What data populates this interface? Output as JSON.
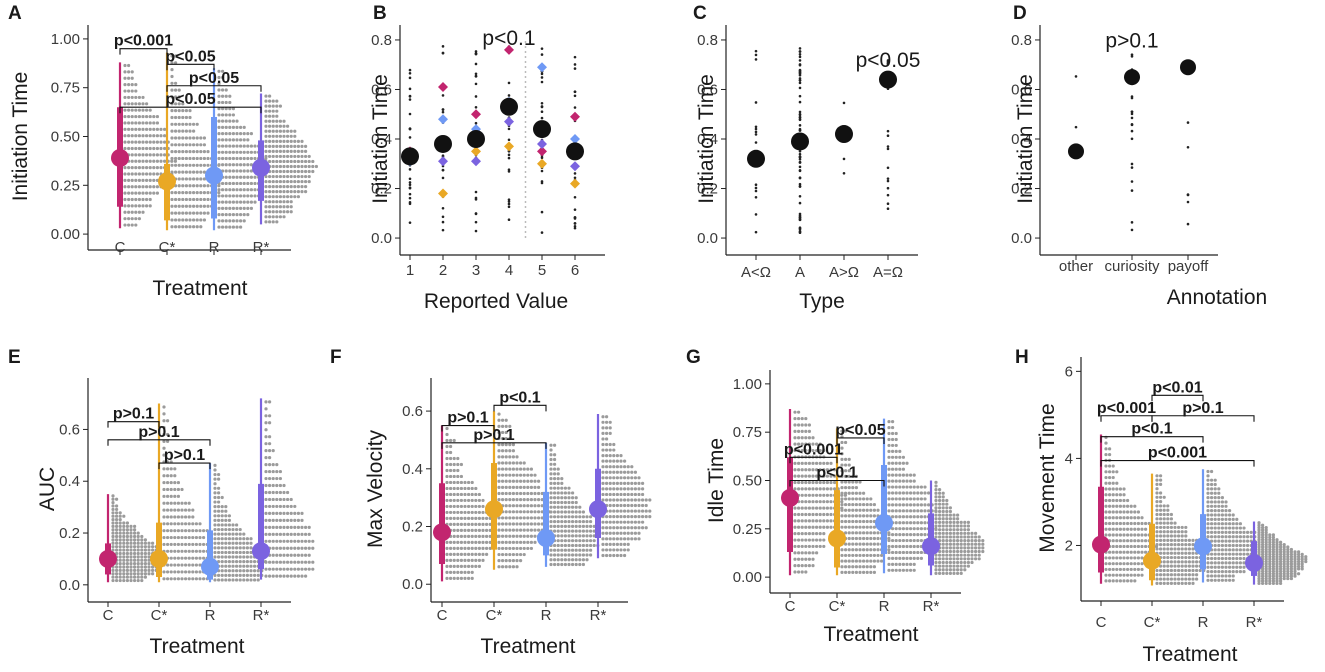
{
  "colors": {
    "C": "#c2256f",
    "C*": "#e9a825",
    "R": "#6f99f5",
    "R*": "#7b63e0",
    "dots": "#9b9b9b",
    "black": "#111111"
  },
  "chart_data": [
    {
      "panel": "A",
      "type": "scatter",
      "title": "",
      "xlabel": "Treatment",
      "ylabel": "Initiation Time",
      "categories": [
        "C",
        "C*",
        "R",
        "R*"
      ],
      "yticks": [
        0.0,
        0.25,
        0.5,
        0.75,
        1.0
      ],
      "ytick_labels": [
        "0.00",
        "0.25",
        "0.50",
        "0.75",
        "1.00"
      ],
      "ylim": [
        -0.02,
        1.02
      ],
      "series": [
        {
          "name": "C",
          "mean": 0.39,
          "q_low": 0.14,
          "q_high": 0.65,
          "min": 0.03,
          "max": 0.88
        },
        {
          "name": "C*",
          "mean": 0.27,
          "q_low": 0.07,
          "q_high": 0.36,
          "min": 0.02,
          "max": 0.93
        },
        {
          "name": "R",
          "mean": 0.3,
          "q_low": 0.08,
          "q_high": 0.6,
          "min": 0.02,
          "max": 0.85
        },
        {
          "name": "R*",
          "mean": 0.34,
          "q_low": 0.17,
          "q_high": 0.48,
          "min": 0.05,
          "max": 0.72
        }
      ],
      "annotations": [
        {
          "text": "p<0.001",
          "from": "C",
          "to": "C*",
          "y": 0.95
        },
        {
          "text": "p<0.05",
          "from": "C*",
          "to": "R",
          "y": 0.87
        },
        {
          "text": "p<0.05",
          "from": "C*",
          "to": "R*",
          "y": 0.76
        },
        {
          "text": "p<0.05",
          "from": "C",
          "to": "R*",
          "y": 0.65
        }
      ]
    },
    {
      "panel": "B",
      "type": "scatter",
      "title": "",
      "xlabel": "Reported Value",
      "ylabel": "Initiation Time",
      "categories": [
        "1",
        "2",
        "3",
        "4",
        "5",
        "6"
      ],
      "yticks": [
        0.0,
        0.2,
        0.4,
        0.6,
        0.8
      ],
      "ytick_labels": [
        "0.0",
        "0.2",
        "0.4",
        "0.6",
        "0.8"
      ],
      "ylim": [
        -0.02,
        0.82
      ],
      "means": [
        0.33,
        0.38,
        0.4,
        0.53,
        0.44,
        0.35
      ],
      "diamonds": {
        "C": [
          0.35,
          0.61,
          0.5,
          0.76,
          0.35,
          0.49
        ],
        "C*": [
          0.34,
          0.18,
          0.35,
          0.37,
          0.3,
          0.22
        ],
        "R": [
          0.31,
          0.48,
          0.44,
          0.55,
          0.69,
          0.4
        ],
        "R*": [
          0.32,
          0.31,
          0.31,
          0.47,
          0.38,
          0.29
        ]
      },
      "annotations": [
        {
          "text": "p<0.1",
          "x": "4",
          "y": 0.78
        }
      ]
    },
    {
      "panel": "C",
      "type": "scatter",
      "title": "",
      "xlabel": "Type",
      "ylabel": "Initiation Time",
      "categories": [
        "A<Ω",
        "A",
        "A>Ω",
        "A=Ω"
      ],
      "yticks": [
        0.0,
        0.2,
        0.4,
        0.6,
        0.8
      ],
      "ytick_labels": [
        "0.0",
        "0.2",
        "0.4",
        "0.6",
        "0.8"
      ],
      "ylim": [
        -0.02,
        0.82
      ],
      "means": [
        0.32,
        0.39,
        0.42,
        0.64
      ],
      "annotations": [
        {
          "text": "p<0.05",
          "x": "A=Ω",
          "y": 0.69
        }
      ]
    },
    {
      "panel": "D",
      "type": "scatter",
      "title": "",
      "xlabel": "Annotation",
      "ylabel": "Initiation Time",
      "categories": [
        "other",
        "curiosity",
        "payoff"
      ],
      "yticks": [
        0.0,
        0.2,
        0.4,
        0.6,
        0.8
      ],
      "ytick_labels": [
        "0.0",
        "0.2",
        "0.4",
        "0.6",
        "0.8"
      ],
      "ylim": [
        -0.02,
        0.82
      ],
      "means": [
        0.35,
        0.65,
        0.69
      ],
      "annotations": [
        {
          "text": "p>0.1",
          "x": "curiosity",
          "y": 0.77
        }
      ]
    },
    {
      "panel": "E",
      "type": "scatter",
      "title": "",
      "xlabel": "Treatment",
      "ylabel": "AUC",
      "categories": [
        "C",
        "C*",
        "R",
        "R*"
      ],
      "yticks": [
        0.0,
        0.2,
        0.4,
        0.6
      ],
      "ytick_labels": [
        "0.0",
        "0.2",
        "0.4",
        "0.6"
      ],
      "ylim": [
        -0.02,
        0.76
      ],
      "series": [
        {
          "name": "C",
          "mean": 0.1,
          "q_low": 0.04,
          "q_high": 0.16,
          "min": 0.01,
          "max": 0.35
        },
        {
          "name": "C*",
          "mean": 0.1,
          "q_low": 0.03,
          "q_high": 0.24,
          "min": 0.01,
          "max": 0.7
        },
        {
          "name": "R",
          "mean": 0.07,
          "q_low": 0.02,
          "q_high": 0.21,
          "min": 0.01,
          "max": 0.47
        },
        {
          "name": "R*",
          "mean": 0.13,
          "q_low": 0.06,
          "q_high": 0.39,
          "min": 0.02,
          "max": 0.72
        }
      ],
      "annotations": [
        {
          "text": "p>0.1",
          "from": "C",
          "to": "C*",
          "y": 0.63
        },
        {
          "text": "p>0.1",
          "from": "C",
          "to": "R",
          "y": 0.56
        },
        {
          "text": "p>0.1",
          "from": "C*",
          "to": "R",
          "y": 0.47
        }
      ]
    },
    {
      "panel": "F",
      "type": "scatter",
      "title": "",
      "xlabel": "Treatment",
      "ylabel": "Max Velocity",
      "categories": [
        "C",
        "C*",
        "R",
        "R*"
      ],
      "yticks": [
        0.0,
        0.2,
        0.4,
        0.6
      ],
      "ytick_labels": [
        "0.0",
        "0.2",
        "0.4",
        "0.6"
      ],
      "ylim": [
        -0.02,
        0.68
      ],
      "series": [
        {
          "name": "C",
          "mean": 0.18,
          "q_low": 0.07,
          "q_high": 0.35,
          "min": 0.01,
          "max": 0.55
        },
        {
          "name": "C*",
          "mean": 0.26,
          "q_low": 0.12,
          "q_high": 0.42,
          "min": 0.05,
          "max": 0.6
        },
        {
          "name": "R",
          "mean": 0.16,
          "q_low": 0.1,
          "q_high": 0.32,
          "min": 0.06,
          "max": 0.49
        },
        {
          "name": "R*",
          "mean": 0.26,
          "q_low": 0.16,
          "q_high": 0.4,
          "min": 0.09,
          "max": 0.59
        }
      ],
      "annotations": [
        {
          "text": "p<0.1",
          "from": "C*",
          "to": "R",
          "y": 0.62
        },
        {
          "text": "p>0.1",
          "from": "C",
          "to": "C*",
          "y": 0.55
        },
        {
          "text": "p>0.1",
          "from": "C",
          "to": "R",
          "y": 0.49
        }
      ]
    },
    {
      "panel": "G",
      "type": "scatter",
      "title": "",
      "xlabel": "Treatment",
      "ylabel": "Idle Time",
      "categories": [
        "C",
        "C*",
        "R",
        "R*"
      ],
      "yticks": [
        0.0,
        0.25,
        0.5,
        0.75,
        1.0
      ],
      "ytick_labels": [
        "0.00",
        "0.25",
        "0.50",
        "0.75",
        "1.00"
      ],
      "ylim": [
        -0.02,
        1.02
      ],
      "series": [
        {
          "name": "C",
          "mean": 0.41,
          "q_low": 0.13,
          "q_high": 0.62,
          "min": 0.01,
          "max": 0.87
        },
        {
          "name": "C*",
          "mean": 0.2,
          "q_low": 0.05,
          "q_high": 0.45,
          "min": 0.01,
          "max": 0.77
        },
        {
          "name": "R",
          "mean": 0.28,
          "q_low": 0.12,
          "q_high": 0.58,
          "min": 0.02,
          "max": 0.82
        },
        {
          "name": "R*",
          "mean": 0.16,
          "q_low": 0.06,
          "q_high": 0.33,
          "min": 0.01,
          "max": 0.5
        }
      ],
      "annotations": [
        {
          "text": "p<0.05",
          "from": "C*",
          "to": "R",
          "y": 0.72
        },
        {
          "text": "p<0.001",
          "from": "C",
          "to": "C*",
          "y": 0.62
        },
        {
          "text": "p<0.1",
          "from": "C",
          "to": "R",
          "y": 0.5
        }
      ]
    },
    {
      "panel": "H",
      "type": "scatter",
      "title": "",
      "xlabel": "Treatment",
      "ylabel": "Movement Time",
      "categories": [
        "C",
        "C*",
        "R",
        "R*"
      ],
      "yticks": [
        2,
        4,
        6
      ],
      "ytick_labels": [
        "2",
        "4",
        "6"
      ],
      "ylim": [
        1.0,
        6.1
      ],
      "series": [
        {
          "name": "C",
          "mean": 2.02,
          "q_low": 1.38,
          "q_high": 3.35,
          "min": 1.12,
          "max": 4.55
        },
        {
          "name": "C*",
          "mean": 1.65,
          "q_low": 1.2,
          "q_high": 2.5,
          "min": 1.08,
          "max": 3.65
        },
        {
          "name": "R",
          "mean": 1.98,
          "q_low": 1.45,
          "q_high": 2.72,
          "min": 1.15,
          "max": 3.75
        },
        {
          "name": "R*",
          "mean": 1.6,
          "q_low": 1.3,
          "q_high": 2.1,
          "min": 1.1,
          "max": 2.55
        }
      ],
      "annotations": [
        {
          "text": "p<0.01",
          "from": "C*",
          "to": "R",
          "y": 5.45
        },
        {
          "text": "p<0.001",
          "from": "C",
          "to": "C*",
          "y": 4.98
        },
        {
          "text": "p>0.1",
          "from": "C*",
          "to": "R*",
          "y": 4.98
        },
        {
          "text": "p<0.1",
          "from": "C",
          "to": "R",
          "y": 4.5
        },
        {
          "text": "p<0.001",
          "from": "C",
          "to": "R*",
          "y": 3.95
        }
      ]
    }
  ]
}
